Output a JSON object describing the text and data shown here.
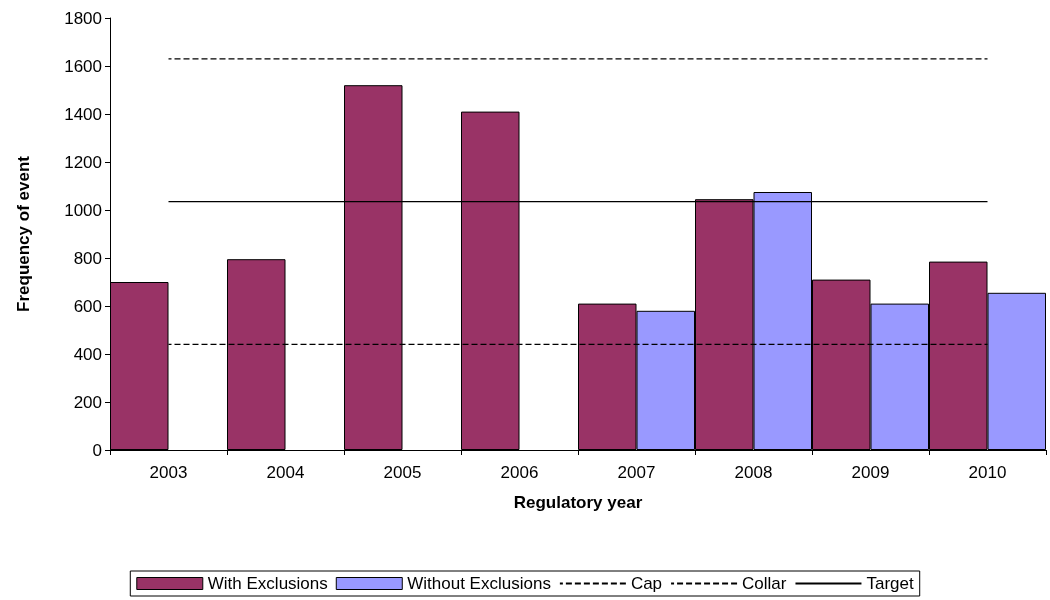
{
  "chart_data": {
    "type": "bar",
    "xlabel": "Regulatory year",
    "ylabel": "Frequency of event",
    "categories": [
      "2003",
      "2004",
      "2005",
      "2006",
      "2007",
      "2008",
      "2009",
      "2010"
    ],
    "series": [
      {
        "name": "With Exclusions",
        "color": "#993366",
        "values": [
          700,
          795,
          1520,
          1410,
          610,
          1045,
          710,
          785
        ]
      },
      {
        "name": "Without Exclusions",
        "color": "#9999ff",
        "values": [
          null,
          null,
          null,
          null,
          580,
          1075,
          610,
          655
        ]
      },
      {
        "name": "Cap",
        "type": "line",
        "color": "#000000",
        "line_style": "dashed",
        "values": [
          1630,
          1630,
          1630,
          1630,
          1630,
          1630,
          1630,
          1630
        ]
      },
      {
        "name": "Collar",
        "type": "line",
        "color": "#000000",
        "line_style": "dashed",
        "values": [
          440,
          440,
          440,
          440,
          440,
          440,
          440,
          440
        ]
      },
      {
        "name": "Target",
        "type": "line",
        "color": "#000000",
        "line_style": "solid",
        "values": [
          1035,
          1035,
          1035,
          1035,
          1035,
          1035,
          1035,
          1035
        ]
      }
    ],
    "ylim": [
      0,
      1800
    ],
    "yticks": [
      0,
      200,
      400,
      600,
      800,
      1000,
      1200,
      1400,
      1600,
      1800
    ],
    "grid": false,
    "legend": "bottom",
    "marker": "none"
  }
}
